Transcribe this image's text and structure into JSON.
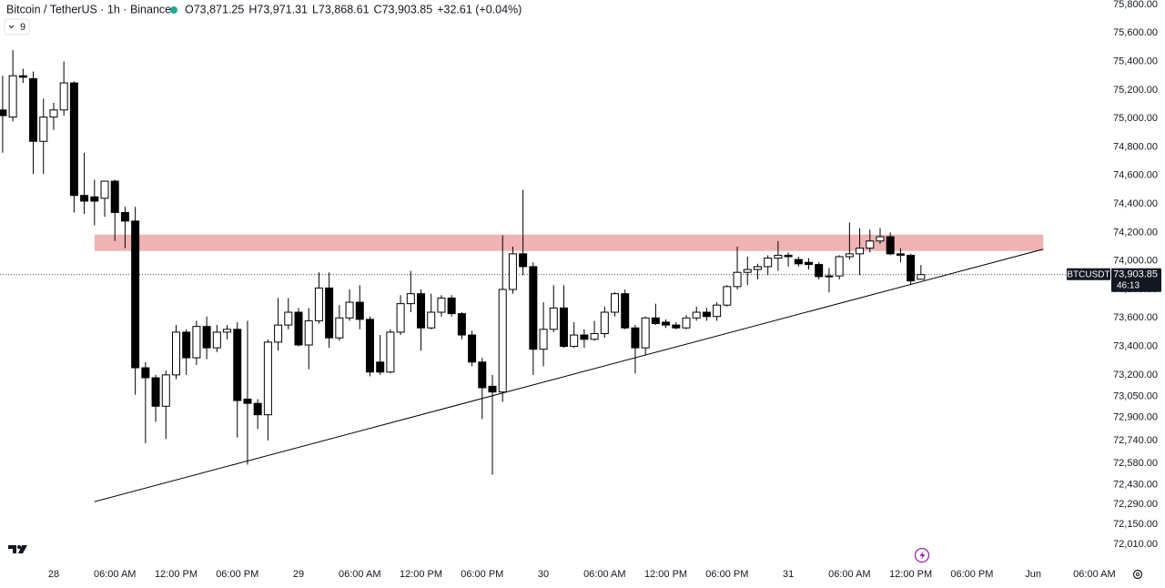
{
  "chart_data": {
    "type": "candlestick",
    "title": "Bitcoin / TetherUS · 1h · Binance",
    "ohlc_labels": [
      "O73,871.25",
      "H73,971.31",
      "L73,868.61",
      "C73,903.85",
      "+32.61 (+0.04%)"
    ],
    "indicator_count": "9",
    "symbol": "BTCUSDT",
    "countdown": "46:13",
    "last_price": {
      "value": 73903.85,
      "label": "73,903.85"
    },
    "up_color": "#ffffff",
    "down_color": "#000000",
    "zone": {
      "color": "#efb3b3",
      "x": [
        4,
        97
      ],
      "y": [
        74070,
        74185
      ]
    },
    "trendline": {
      "color": "#000000",
      "x": [
        4,
        97
      ],
      "y": [
        72310,
        74083
      ]
    },
    "x": [
      -5,
      -4,
      -3,
      -2,
      -1,
      0,
      1,
      2,
      3,
      4,
      5,
      6,
      7,
      8,
      9,
      10,
      11,
      12,
      13,
      14,
      15,
      16,
      17,
      18,
      19,
      20,
      21,
      22,
      23,
      24,
      25,
      26,
      27,
      28,
      29,
      30,
      31,
      32,
      33,
      34,
      35,
      36,
      37,
      38,
      39,
      40,
      41,
      42,
      43,
      44,
      45,
      46,
      47,
      48,
      49,
      50,
      51,
      52,
      53,
      54,
      55,
      56,
      57,
      58,
      59,
      60,
      61,
      62,
      63,
      64,
      65,
      66,
      67,
      68,
      69,
      70,
      71,
      72,
      73,
      74,
      75,
      76,
      77,
      78,
      79,
      80,
      81,
      82,
      83,
      84,
      85
    ],
    "open": [
      75060,
      75010,
      75300,
      75280,
      74840,
      75010,
      75060,
      75250,
      74460,
      74450,
      74440,
      74560,
      74340,
      74280,
      73250,
      73180,
      72980,
      73200,
      73500,
      73320,
      73540,
      73390,
      73500,
      73520,
      73030,
      73000,
      72920,
      73430,
      73550,
      73640,
      73410,
      73580,
      73810,
      73460,
      73600,
      73710,
      73590,
      73290,
      73220,
      73500,
      73700,
      73770,
      73530,
      73640,
      73740,
      73630,
      73480,
      73290,
      73120,
      73080,
      73800,
      74050,
      73960,
      73380,
      73520,
      73670,
      73400,
      73480,
      73450,
      73490,
      73640,
      73770,
      73530,
      73390,
      73600,
      73570,
      73550,
      73530,
      73600,
      73640,
      73610,
      73690,
      73820,
      73920,
      73940,
      73960,
      74020,
      74040,
      74010,
      73990,
      73975,
      73890,
      73895,
      74030,
      74050,
      74090,
      74140,
      74170,
      74050,
      74040,
      73871.25
    ],
    "high": [
      75300,
      75480,
      75350,
      75330,
      75140,
      75110,
      75400,
      75260,
      74760,
      74570,
      74560,
      74570,
      74380,
      74380,
      73290,
      73200,
      73230,
      73550,
      73520,
      73580,
      73610,
      73550,
      73550,
      73570,
      73580,
      73030,
      73450,
      73740,
      73740,
      73670,
      73670,
      73920,
      73920,
      73690,
      73800,
      73830,
      73610,
      73480,
      73520,
      73760,
      73930,
      73800,
      73770,
      73760,
      73760,
      73640,
      73510,
      73320,
      73200,
      74180,
      74100,
      74500,
      73990,
      73710,
      73830,
      73830,
      73570,
      73520,
      73580,
      73680,
      73780,
      73800,
      73550,
      73610,
      73700,
      73590,
      73570,
      73620,
      73680,
      73670,
      73710,
      73830,
      74100,
      74030,
      73980,
      74040,
      74140,
      74060,
      74030,
      74020,
      73990,
      73950,
      74040,
      74270,
      74230,
      74220,
      74230,
      74200,
      74090,
      74050,
      73971.31
    ],
    "low": [
      74760,
      74980,
      75250,
      74610,
      74610,
      74920,
      75020,
      74340,
      74330,
      74250,
      74310,
      74140,
      74090,
      73060,
      72720,
      72870,
      72750,
      73170,
      73200,
      73270,
      73310,
      73360,
      73450,
      72760,
      72570,
      72820,
      72740,
      73370,
      73520,
      73400,
      73240,
      73560,
      73390,
      73440,
      73580,
      73520,
      73190,
      73200,
      73210,
      73480,
      73640,
      73370,
      73520,
      73610,
      73610,
      73450,
      73260,
      72890,
      72500,
      73010,
      73770,
      73900,
      73200,
      73260,
      73500,
      73390,
      73390,
      73390,
      73440,
      73460,
      73610,
      73520,
      73210,
      73340,
      73550,
      73530,
      73520,
      73520,
      73580,
      73580,
      73580,
      73680,
      73800,
      73830,
      73870,
      73900,
      73930,
      73960,
      73960,
      73940,
      73870,
      73780,
      73870,
      74010,
      73900,
      74060,
      74120,
      74040,
      73990,
      73830,
      73868.61
    ],
    "close": [
      75020,
      75300,
      75290,
      74840,
      75010,
      75060,
      75250,
      74460,
      74420,
      74420,
      74560,
      74340,
      74280,
      73250,
      73180,
      72980,
      73200,
      73500,
      73320,
      73540,
      73390,
      73500,
      73520,
      73020,
      73000,
      72920,
      73430,
      73550,
      73640,
      73410,
      73580,
      73810,
      73460,
      73600,
      73710,
      73590,
      73220,
      73220,
      73500,
      73700,
      73770,
      73530,
      73640,
      73740,
      73630,
      73480,
      73290,
      73110,
      73080,
      73800,
      74050,
      73960,
      73380,
      73520,
      73670,
      73400,
      73480,
      73450,
      73490,
      73640,
      73770,
      73530,
      73390,
      73600,
      73560,
      73550,
      73530,
      73600,
      73640,
      73610,
      73690,
      73820,
      73920,
      73940,
      73960,
      74020,
      74040,
      74030,
      73980,
      73975,
      73890,
      73895,
      74030,
      74050,
      74090,
      74140,
      74170,
      74050,
      74040,
      73860,
      73903.85
    ],
    "xlim": [
      -5.26,
      103.57
    ],
    "xticks": [
      {
        "value": 0,
        "label": "28"
      },
      {
        "value": 6,
        "label": "06:00 AM"
      },
      {
        "value": 12,
        "label": "12:00 PM"
      },
      {
        "value": 18,
        "label": "06:00 PM"
      },
      {
        "value": 24,
        "label": "29"
      },
      {
        "value": 30,
        "label": "06:00 AM"
      },
      {
        "value": 36,
        "label": "12:00 PM"
      },
      {
        "value": 42,
        "label": "06:00 PM"
      },
      {
        "value": 48,
        "label": "30"
      },
      {
        "value": 54,
        "label": "06:00 AM"
      },
      {
        "value": 60,
        "label": "12:00 PM"
      },
      {
        "value": 66,
        "label": "06:00 PM"
      },
      {
        "value": 72,
        "label": "31"
      },
      {
        "value": 78,
        "label": "06:00 AM"
      },
      {
        "value": 84,
        "label": "12:00 PM"
      },
      {
        "value": 90,
        "label": "06:00 PM"
      },
      {
        "value": 96,
        "label": "Jun"
      },
      {
        "value": 102,
        "label": "06:00 AM"
      }
    ],
    "ylim": [
      71870,
      75832
    ],
    "yticks": [
      {
        "value": 75800,
        "label": "75,800.00"
      },
      {
        "value": 75600,
        "label": "75,600.00"
      },
      {
        "value": 75400,
        "label": "75,400.00"
      },
      {
        "value": 75200,
        "label": "75,200.00"
      },
      {
        "value": 75000,
        "label": "75,000.00"
      },
      {
        "value": 74800,
        "label": "74,800.00"
      },
      {
        "value": 74600,
        "label": "74,600.00"
      },
      {
        "value": 74400,
        "label": "74,400.00"
      },
      {
        "value": 74200,
        "label": "74,200.00"
      },
      {
        "value": 74000,
        "label": "74,000.00"
      },
      {
        "value": 73800,
        "label": "73,800.00"
      },
      {
        "value": 73600,
        "label": "73,600.00"
      },
      {
        "value": 73400,
        "label": "73,400.00"
      },
      {
        "value": 73200,
        "label": "73,200.00"
      },
      {
        "value": 73050,
        "label": "73,050.00"
      },
      {
        "value": 72900,
        "label": "72,900.00"
      },
      {
        "value": 72740,
        "label": "72,740.00"
      },
      {
        "value": 72580,
        "label": "72,580.00"
      },
      {
        "value": 72430,
        "label": "72,430.00"
      },
      {
        "value": 72290,
        "label": "72,290.00"
      },
      {
        "value": 72150,
        "label": "72,150.00"
      },
      {
        "value": 72010,
        "label": "72,010.00"
      }
    ]
  }
}
